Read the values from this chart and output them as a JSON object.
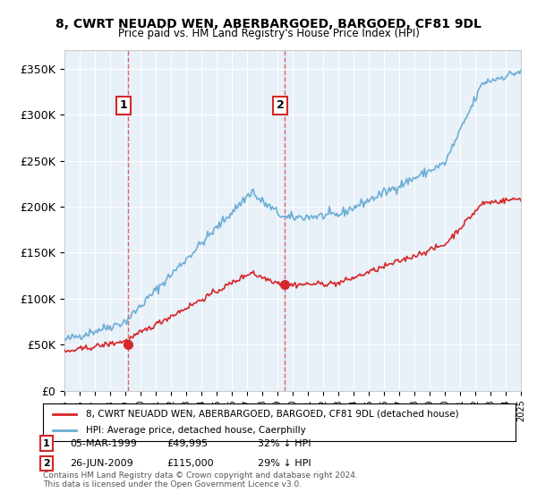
{
  "title": "8, CWRT NEUADD WEN, ABERBARGOED, BARGOED, CF81 9DL",
  "subtitle": "Price paid vs. HM Land Registry's House Price Index (HPI)",
  "legend_line1": "8, CWRT NEUADD WEN, ABERBARGOED, BARGOED, CF81 9DL (detached house)",
  "legend_line2": "HPI: Average price, detached house, Caerphilly",
  "annotation1_label": "1",
  "annotation1_date": "05-MAR-1999",
  "annotation1_price": "£49,995",
  "annotation1_hpi": "32% ↓ HPI",
  "annotation2_label": "2",
  "annotation2_date": "26-JUN-2009",
  "annotation2_price": "£115,000",
  "annotation2_hpi": "29% ↓ HPI",
  "footer": "Contains HM Land Registry data © Crown copyright and database right 2024.\nThis data is licensed under the Open Government Licence v3.0.",
  "hpi_color": "#6baed6",
  "price_color": "#d62728",
  "sale1_x": 1999.17,
  "sale1_y": 49995,
  "sale2_x": 2009.48,
  "sale2_y": 115000,
  "xmin": 1995,
  "xmax": 2025,
  "ymin": 0,
  "ymax": 360000,
  "yticks": [
    0,
    50000,
    100000,
    150000,
    200000,
    250000,
    300000,
    350000
  ],
  "background_color": "#e8f0f8"
}
